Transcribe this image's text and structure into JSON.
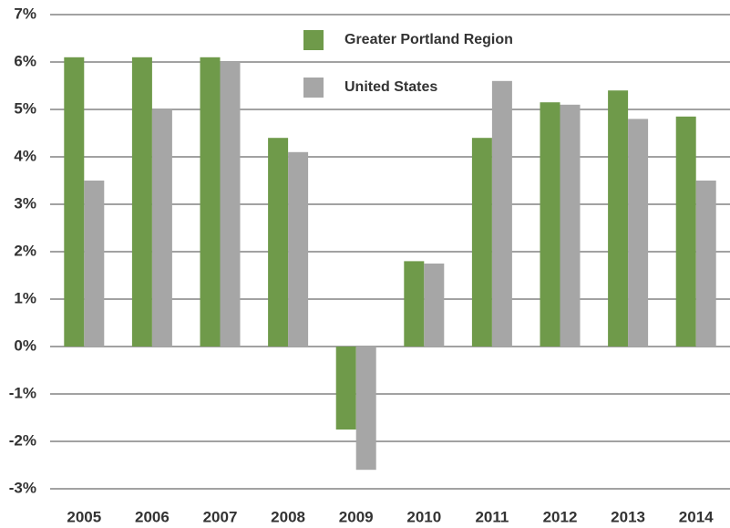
{
  "chart_data": {
    "type": "bar",
    "categories": [
      "2005",
      "2006",
      "2007",
      "2008",
      "2009",
      "2010",
      "2011",
      "2012",
      "2013",
      "2014"
    ],
    "series": [
      {
        "name": "Greater Portland Region",
        "color": "#6f9a4a",
        "values": [
          6.1,
          6.1,
          6.1,
          4.4,
          -1.75,
          1.8,
          4.4,
          5.15,
          5.4,
          4.85
        ]
      },
      {
        "name": "United States",
        "color": "#a6a6a6",
        "values": [
          3.5,
          5.0,
          6.0,
          4.1,
          -2.6,
          1.75,
          5.6,
          5.1,
          4.8,
          3.5
        ]
      }
    ],
    "ylim": [
      -3,
      7
    ],
    "yticks": [
      {
        "value": -3,
        "label": "-3%"
      },
      {
        "value": -2,
        "label": "-2%"
      },
      {
        "value": -1,
        "label": "-1%"
      },
      {
        "value": 0,
        "label": "0%"
      },
      {
        "value": 1,
        "label": "1%"
      },
      {
        "value": 2,
        "label": "2%"
      },
      {
        "value": 3,
        "label": "3%"
      },
      {
        "value": 4,
        "label": "4%"
      },
      {
        "value": 5,
        "label": "5%"
      },
      {
        "value": 6,
        "label": "6%"
      },
      {
        "value": 7,
        "label": "7%"
      }
    ],
    "grid": true,
    "legend": "top"
  }
}
